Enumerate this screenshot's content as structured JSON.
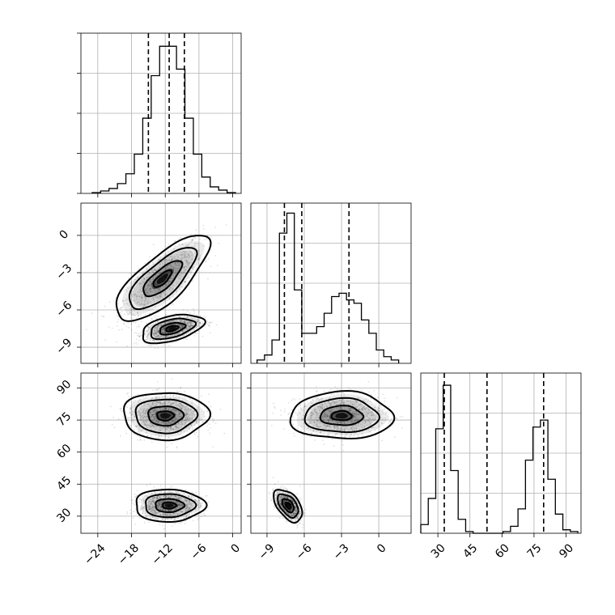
{
  "chart_data": {
    "type": "corner",
    "parameters": [
      {
        "index": 0,
        "range": [
          -27,
          1.5
        ],
        "ticks": [
          -24,
          -18,
          -12,
          -6,
          0
        ],
        "tick_labels": [
          "−24",
          "−18",
          "−12",
          "−6",
          "0"
        ]
      },
      {
        "index": 1,
        "range": [
          -10.3,
          2.6
        ],
        "ticks": [
          -9,
          -6,
          -3,
          0
        ],
        "tick_labels": [
          "−9",
          "−6",
          "−3",
          "0"
        ]
      },
      {
        "index": 2,
        "range": [
          22,
          97
        ],
        "ticks": [
          30,
          45,
          60,
          75,
          90
        ],
        "tick_labels": [
          "30",
          "45",
          "60",
          "75",
          "90"
        ]
      }
    ],
    "histograms": [
      {
        "param": 0,
        "bins": [
          -25.0,
          -23.5,
          -22.0,
          -20.5,
          -19.0,
          -17.5,
          -16.0,
          -14.5,
          -13.0,
          -11.5,
          -10.0,
          -8.5,
          -7.0,
          -5.5,
          -4.0,
          -2.5,
          -1.0,
          0.5
        ],
        "counts": [
          0.5,
          1.5,
          3,
          6,
          12,
          24,
          46,
          72,
          90,
          90,
          76,
          46,
          24,
          10,
          4,
          2,
          0.5
        ],
        "ymax": 98,
        "quantiles": [
          -15.0,
          -11.3,
          -8.6
        ]
      },
      {
        "param": 1,
        "bins": [
          -9.8,
          -9.2,
          -8.6,
          -8.0,
          -7.4,
          -6.8,
          -6.2,
          -5.6,
          -5.0,
          -4.4,
          -3.8,
          -3.2,
          -2.6,
          -2.0,
          -1.4,
          -0.8,
          -0.2,
          0.4,
          1.0,
          1.6
        ],
        "counts": [
          2,
          5,
          14,
          78,
          90,
          44,
          18,
          18,
          22,
          30,
          40,
          42,
          38,
          36,
          26,
          18,
          8,
          4,
          2
        ],
        "ymax": 96,
        "quantiles": [
          -7.6,
          -6.2,
          -2.4
        ]
      },
      {
        "param": 2,
        "bins": [
          22,
          25.5,
          29,
          32.5,
          36,
          39.5,
          43,
          46.5,
          50,
          53.5,
          57,
          60.5,
          64,
          67.5,
          71,
          74.5,
          78,
          81.5,
          85,
          88.5,
          92,
          95.5
        ],
        "counts": [
          5,
          20,
          60,
          85,
          36,
          8,
          1,
          0,
          0,
          0,
          0,
          1,
          4,
          14,
          42,
          61,
          65,
          31,
          11,
          2,
          1
        ],
        "ymax": 92,
        "quantiles": [
          33.0,
          53.0,
          79.5
        ]
      }
    ],
    "pairs": [
      {
        "x_param": 0,
        "y_param": 1,
        "clusters": [
          {
            "center": [
              -12.5,
              -3.5
            ],
            "sd": [
              3.6,
              1.5
            ],
            "corr": 0.75,
            "weight": 0.5
          },
          {
            "center": [
              -10.8,
              -7.5
            ],
            "sd": [
              2.4,
              0.5
            ],
            "corr": 0.45,
            "weight": 0.5
          }
        ]
      },
      {
        "x_param": 0,
        "y_param": 2,
        "clusters": [
          {
            "center": [
              -12.0,
              77.0
            ],
            "sd": [
              3.3,
              4.8
            ],
            "corr": 0.0,
            "weight": 0.5
          },
          {
            "center": [
              -11.3,
              35.0
            ],
            "sd": [
              2.7,
              3.3
            ],
            "corr": 0.0,
            "weight": 0.5
          }
        ]
      },
      {
        "x_param": 1,
        "y_param": 2,
        "clusters": [
          {
            "center": [
              -3.0,
              77.0
            ],
            "sd": [
              1.8,
              4.8
            ],
            "corr": 0.0,
            "weight": 0.5
          },
          {
            "center": [
              -7.3,
              35.0
            ],
            "sd": [
              0.5,
              3.3
            ],
            "corr": -0.5,
            "weight": 0.5
          }
        ]
      }
    ],
    "grid": true
  }
}
